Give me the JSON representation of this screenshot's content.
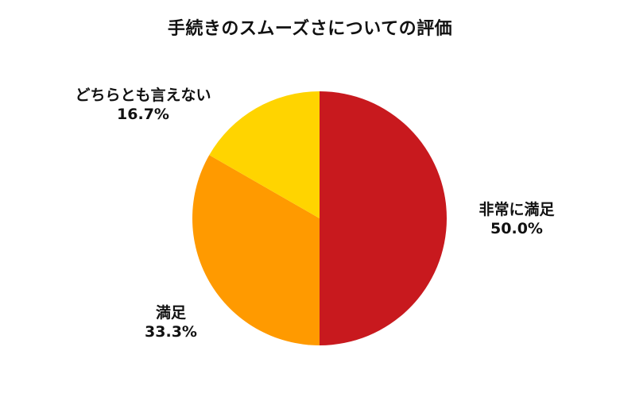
{
  "chart_data": {
    "type": "pie",
    "title": "手続きのスムーズさについての評価",
    "slices": [
      {
        "label": "非常に満足",
        "value": 50.0,
        "value_label": "50.0%",
        "color": "#C8191E"
      },
      {
        "label": "満足",
        "value": 33.3,
        "value_label": "33.3%",
        "color": "#FF9A00"
      },
      {
        "label": "どちらとも言えない",
        "value": 16.7,
        "value_label": "16.7%",
        "color": "#FFD400"
      }
    ],
    "start_angle_deg": 0,
    "direction": "clockwise",
    "legend": "none"
  }
}
